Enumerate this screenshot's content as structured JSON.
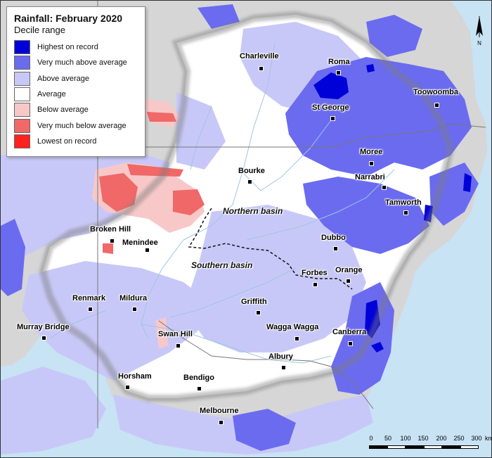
{
  "title": "Rainfall: February 2020",
  "subtitle": "Decile range",
  "colors": {
    "highest": "#0000d8",
    "very_much_above": "#6b6bf0",
    "above": "#c8c8f8",
    "average": "#ffffff",
    "below": "#f8c8c8",
    "very_much_below": "#f06868",
    "lowest": "#ff2020",
    "ocean": "#c7e3f4",
    "outside": "#d6d6d6"
  },
  "legend": [
    {
      "label": "Highest on record",
      "color": "#0000d8"
    },
    {
      "label": "Very much above average",
      "color": "#6b6bf0"
    },
    {
      "label": "Above average",
      "color": "#c8c8f8"
    },
    {
      "label": "Average",
      "color": "#ffffff"
    },
    {
      "label": "Below average",
      "color": "#f8c8c8"
    },
    {
      "label": "Very much below average",
      "color": "#f06868"
    },
    {
      "label": "Lowest on record",
      "color": "#ff2020"
    }
  ],
  "places": {
    "charleville": "Charleville",
    "roma": "Roma",
    "toowoomba": "Toowoomba",
    "st_george": "St George",
    "moree": "Moree",
    "narrabri": "Narrabri",
    "bourke": "Bourke",
    "tamworth": "Tamworth",
    "broken_hill": "Broken Hill",
    "menindee": "Menindee",
    "dubbo": "Dubbo",
    "forbes": "Forbes",
    "orange": "Orange",
    "renmark": "Renmark",
    "mildura": "Mildura",
    "griffith": "Griffith",
    "murray_bridge": "Murray Bridge",
    "wagga_wagga": "Wagga Wagga",
    "swan_hill": "Swan Hill",
    "canberra": "Canberra",
    "albury": "Albury",
    "horsham": "Horsham",
    "bendigo": "Bendigo",
    "melbourne": "Melbourne"
  },
  "basins": {
    "northern": "Northern basin",
    "southern": "Southern basin"
  },
  "north_label": "N",
  "scale": {
    "labels": [
      "0",
      "50",
      "100",
      "150",
      "200",
      "250",
      "300"
    ],
    "unit": "km"
  }
}
